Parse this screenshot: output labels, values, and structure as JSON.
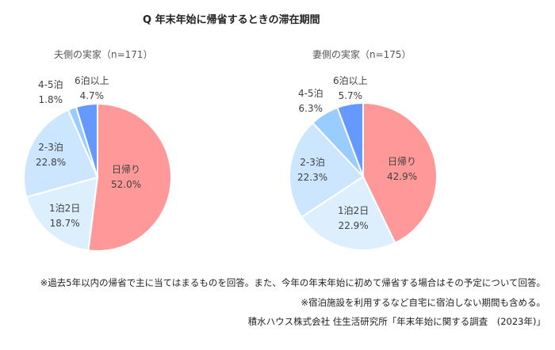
{
  "chart_data": [
    {
      "type": "pie",
      "title": "Q 年末年始に帰省するときの滞在期間",
      "subtitle": "夫側の実家（n=171）",
      "categories": [
        "日帰り",
        "1泊2日",
        "2-3泊",
        "4-5泊",
        "6泊以上"
      ],
      "values": [
        52.0,
        18.7,
        22.8,
        1.8,
        4.7
      ],
      "colors": [
        "#FF9999",
        "#DDEFFD",
        "#CCE6FF",
        "#99CCFF",
        "#6699FF"
      ],
      "unit": "%"
    },
    {
      "type": "pie",
      "title": "Q 年末年始に帰省するときの滞在期間",
      "subtitle": "妻側の実家（n=175）",
      "categories": [
        "日帰り",
        "1泊2日",
        "2-3泊",
        "4-5泊",
        "6泊以上"
      ],
      "values": [
        42.9,
        22.9,
        22.3,
        6.3,
        5.7
      ],
      "colors": [
        "#FF9999",
        "#DDEFFD",
        "#CCE6FF",
        "#99CCFF",
        "#6699FF"
      ],
      "unit": "%"
    }
  ],
  "title": "Q 年末年始に帰省するときの滞在期間",
  "left": {
    "subtitle": "夫側の実家（n=171）",
    "labels": {
      "higaeri": [
        "日帰り",
        "52.0%"
      ],
      "ippaku": [
        "1泊2日",
        "18.7%"
      ],
      "nisan": [
        "2-3泊",
        "22.8%"
      ],
      "shigo": [
        "4-5泊",
        "1.8%"
      ],
      "roku": [
        "6泊以上",
        "4.7%"
      ]
    }
  },
  "right": {
    "subtitle": "妻側の実家（n=175）",
    "labels": {
      "higaeri": [
        "日帰り",
        "42.9%"
      ],
      "ippaku": [
        "1泊2日",
        "22.9%"
      ],
      "nisan": [
        "2-3泊",
        "22.3%"
      ],
      "shigo": [
        "4-5泊",
        "6.3%"
      ],
      "roku": [
        "6泊以上",
        "5.7%"
      ]
    }
  },
  "notes": [
    "※過去5年以内の帰省で主に当てはまるものを回答。また、今年の年末年始に初めて帰省する場合はその予定について回答。",
    "※宿泊施設を利用するなど自宅に宿泊しない期間も含める。",
    "積水ハウス株式会社 住生活研究所「年末年始に関する調査　(2023年)」"
  ]
}
